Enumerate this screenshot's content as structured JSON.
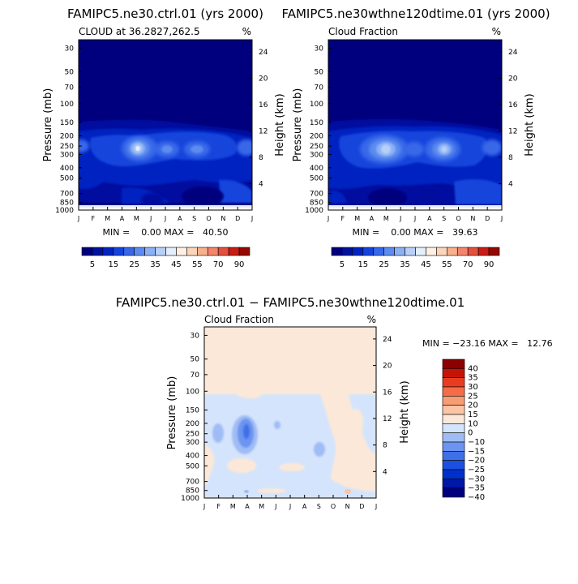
{
  "colors": {
    "cloud_scale": [
      "#00007f",
      "#00109f",
      "#0024c0",
      "#1444dc",
      "#3868e8",
      "#5c8cf0",
      "#8cb0f4",
      "#b8d0f8",
      "#e4eefc",
      "#fff0e4",
      "#fcd4b8",
      "#f8b08c",
      "#f4846c",
      "#e4503c",
      "#c81c14",
      "#940800"
    ],
    "diff_scale": [
      "#00007f",
      "#0018a8",
      "#0030cc",
      "#1c50e0",
      "#4070e8",
      "#6c94f0",
      "#a0bcf4",
      "#d4e4fc",
      "#fce8d8",
      "#fcc4a4",
      "#f89c74",
      "#f46c48",
      "#e83c20",
      "#c41408",
      "#8c0000"
    ]
  },
  "chart_data": [
    {
      "type": "heatmap",
      "id": "panel1",
      "title": "FAMIPC5.ne30.ctrl.01 (yrs 2000)",
      "subtitle_left": "CLOUD at 36.2827,262.5",
      "subtitle_right": "%",
      "xlabel": "",
      "ylabel": "Pressure (mb)",
      "ylabel_right": "Height (km)",
      "x_ticks": [
        "J",
        "F",
        "M",
        "A",
        "M",
        "J",
        "J",
        "A",
        "S",
        "O",
        "N",
        "D",
        "J"
      ],
      "y_ticks": [
        "30",
        "50",
        "70",
        "100",
        "150",
        "200",
        "250",
        "300",
        "400",
        "500",
        "700",
        "850",
        "1000"
      ],
      "y_ticks_right": [
        "24",
        "20",
        "16",
        "12",
        "8",
        "4"
      ],
      "y_ticks_right_km": [
        24,
        20,
        16,
        12,
        8,
        4
      ],
      "pressure_range_mb": [
        25,
        1000
      ],
      "stats": "MIN =    0.00 MAX =   40.50",
      "min": 0.0,
      "max": 40.5,
      "colorbar_levels": [
        5,
        10,
        15,
        20,
        25,
        30,
        35,
        40,
        45,
        50,
        55,
        60,
        70,
        80,
        90
      ],
      "colorbar_labels": [
        "5",
        "15",
        "25",
        "35",
        "45",
        "55",
        "70",
        "90"
      ],
      "features": [
        {
          "month": 4.8,
          "pressure_mb": 250,
          "value": 40.5
        },
        {
          "month": 6.2,
          "pressure_mb": 250,
          "value": 30
        },
        {
          "month": 8.0,
          "pressure_mb": 250,
          "value": 30
        },
        {
          "month": 9.5,
          "pressure_mb": 250,
          "value": 25
        },
        {
          "month": 11.5,
          "pressure_mb": 250,
          "value": 20
        },
        {
          "month": 0.5,
          "pressure_mb": 250,
          "value": 15
        }
      ]
    },
    {
      "type": "heatmap",
      "id": "panel2",
      "title": "FAMIPC5.ne30wthne120dtime.01 (yrs 2000)",
      "subtitle_left": "Cloud Fraction",
      "subtitle_right": "%",
      "xlabel": "",
      "ylabel": "Pressure (mb)",
      "ylabel_right": "Height (km)",
      "x_ticks": [
        "J",
        "F",
        "M",
        "A",
        "M",
        "J",
        "J",
        "A",
        "S",
        "O",
        "N",
        "D",
        "J"
      ],
      "y_ticks": [
        "30",
        "50",
        "70",
        "100",
        "150",
        "200",
        "250",
        "300",
        "400",
        "500",
        "700",
        "850",
        "1000"
      ],
      "y_ticks_right": [
        "24",
        "20",
        "16",
        "12",
        "8",
        "4"
      ],
      "y_ticks_right_km": [
        24,
        20,
        16,
        12,
        8,
        4
      ],
      "pressure_range_mb": [
        25,
        1000
      ],
      "stats": "MIN =    0.00 MAX =   39.63",
      "min": 0.0,
      "max": 39.63,
      "colorbar_levels": [
        5,
        10,
        15,
        20,
        25,
        30,
        35,
        40,
        45,
        50,
        55,
        60,
        70,
        80,
        90
      ],
      "colorbar_labels": [
        "5",
        "15",
        "25",
        "35",
        "45",
        "55",
        "70",
        "90"
      ],
      "features": [
        {
          "month": 3.8,
          "pressure_mb": 250,
          "value": 39.6
        },
        {
          "month": 5.0,
          "pressure_mb": 250,
          "value": 30
        },
        {
          "month": 8.8,
          "pressure_mb": 250,
          "value": 35
        },
        {
          "month": 7.0,
          "pressure_mb": 250,
          "value": 25
        },
        {
          "month": 11.3,
          "pressure_mb": 250,
          "value": 20
        },
        {
          "month": 0.5,
          "pressure_mb": 250,
          "value": 15
        }
      ]
    },
    {
      "type": "heatmap",
      "id": "panel3",
      "title": "FAMIPC5.ne30.ctrl.01 − FAMIPC5.ne30wthne120dtime.01",
      "subtitle_left": "Cloud Fraction",
      "subtitle_right": "%",
      "xlabel": "",
      "ylabel": "Pressure (mb)",
      "ylabel_right": "Height (km)",
      "x_ticks": [
        "J",
        "F",
        "M",
        "A",
        "M",
        "J",
        "J",
        "A",
        "S",
        "O",
        "N",
        "D",
        "J"
      ],
      "y_ticks": [
        "30",
        "50",
        "70",
        "100",
        "150",
        "200",
        "250",
        "300",
        "400",
        "500",
        "700",
        "850",
        "1000"
      ],
      "y_ticks_right": [
        "24",
        "20",
        "16",
        "12",
        "8",
        "4"
      ],
      "y_ticks_right_km": [
        24,
        20,
        16,
        12,
        8,
        4
      ],
      "pressure_range_mb": [
        25,
        1000
      ],
      "stats": "MIN = −23.16 MAX =   12.76",
      "min": -23.16,
      "max": 12.76,
      "colorbar_levels": [
        -40,
        -35,
        -30,
        -25,
        -20,
        -15,
        -10,
        0,
        10,
        15,
        20,
        25,
        30,
        35,
        40
      ],
      "colorbar_labels": [
        "40",
        "35",
        "30",
        "25",
        "20",
        "15",
        "10",
        "0",
        "−10",
        "−15",
        "−20",
        "−25",
        "−30",
        "−35",
        "−40"
      ],
      "features": [
        {
          "month": 3.0,
          "pressure_mb": 260,
          "value": -23.16
        },
        {
          "month": 3.0,
          "pressure_mb": 250,
          "value": -15
        },
        {
          "month": 1.0,
          "pressure_mb": 300,
          "value": -5
        },
        {
          "month": 5.5,
          "pressure_mb": 600,
          "value": 5
        },
        {
          "month": 8.8,
          "pressure_mb": 350,
          "value": -10
        },
        {
          "month": 10.0,
          "pressure_mb": 400,
          "value": 5
        },
        {
          "month": 10.2,
          "pressure_mb": 850,
          "value": 12.76
        }
      ]
    }
  ]
}
